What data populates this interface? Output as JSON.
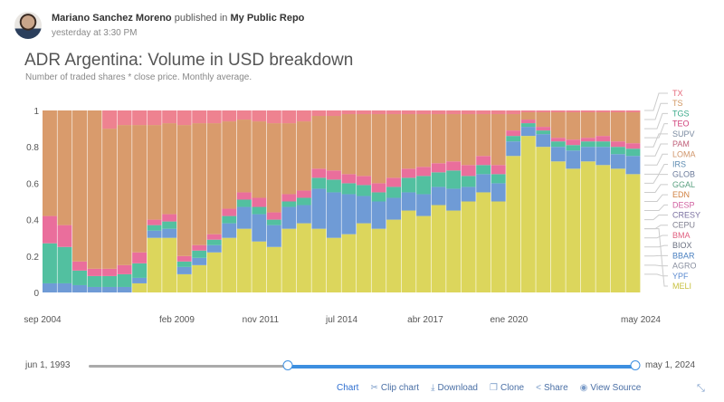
{
  "post": {
    "author": "Mariano Sanchez Moreno",
    "published_text": "published in",
    "repo": "My Public Repo",
    "time": "yesterday at 3:30 PM"
  },
  "chart_data": {
    "type": "bar",
    "stacked": "normalized",
    "title": "ADR Argentina: Volume in USD breakdown",
    "subtitle": "Number of traded shares * close price. Monthly average.",
    "xlabel": "",
    "ylabel": "",
    "ylim": [
      0,
      1
    ],
    "yticks": [
      "0",
      "0.2",
      "0.4",
      "0.6",
      "0.8",
      "1"
    ],
    "xlim": [
      "2004-09",
      "2024-05"
    ],
    "xticks": [
      {
        "label": "sep 2004",
        "date": "2004-09"
      },
      {
        "label": "feb 2009",
        "date": "2009-02"
      },
      {
        "label": "nov 2011",
        "date": "2011-11"
      },
      {
        "label": "jul 2014",
        "date": "2014-07"
      },
      {
        "label": "abr 2017",
        "date": "2017-04"
      },
      {
        "label": "ene 2020",
        "date": "2020-01"
      },
      {
        "label": "may 2024",
        "date": "2024-05"
      }
    ],
    "grid": false,
    "legend_position": "right",
    "legend": [
      {
        "name": "TX",
        "color": "#e5687a"
      },
      {
        "name": "TS",
        "color": "#d09560"
      },
      {
        "name": "TGS",
        "color": "#3aaa8a"
      },
      {
        "name": "TEO",
        "color": "#d0407a"
      },
      {
        "name": "SUPV",
        "color": "#7a8aa0"
      },
      {
        "name": "PAM",
        "color": "#c0607a"
      },
      {
        "name": "LOMA",
        "color": "#d0956a"
      },
      {
        "name": "IRS",
        "color": "#5a8ab0"
      },
      {
        "name": "GLOB",
        "color": "#6a7a9a"
      },
      {
        "name": "GGAL",
        "color": "#5aa080"
      },
      {
        "name": "EDN",
        "color": "#d08040"
      },
      {
        "name": "DESP",
        "color": "#d060a0"
      },
      {
        "name": "CRESY",
        "color": "#7a70a0"
      },
      {
        "name": "CEPU",
        "color": "#808090"
      },
      {
        "name": "BMA",
        "color": "#e06080"
      },
      {
        "name": "BIOX",
        "color": "#6a7080"
      },
      {
        "name": "BBAR",
        "color": "#4a80c0"
      },
      {
        "name": "AGRO",
        "color": "#8a90a0"
      },
      {
        "name": "YPF",
        "color": "#5a8ad0"
      },
      {
        "name": "MELI",
        "color": "#c8c040"
      }
    ],
    "x": [
      "2004-09",
      "2005-03",
      "2005-09",
      "2006-03",
      "2006-09",
      "2007-03",
      "2007-09",
      "2008-03",
      "2008-09",
      "2009-03",
      "2009-09",
      "2010-03",
      "2010-09",
      "2011-03",
      "2011-09",
      "2012-03",
      "2012-09",
      "2013-03",
      "2013-09",
      "2014-03",
      "2014-09",
      "2015-03",
      "2015-09",
      "2016-03",
      "2016-09",
      "2017-03",
      "2017-09",
      "2018-03",
      "2018-09",
      "2019-03",
      "2019-09",
      "2020-03",
      "2020-09",
      "2021-03",
      "2021-09",
      "2022-03",
      "2022-09",
      "2023-03",
      "2023-09",
      "2024-03"
    ],
    "series": [
      {
        "name": "MELI",
        "color": "#dcd65c",
        "values": [
          0,
          0,
          0,
          0,
          0,
          0,
          0.05,
          0.3,
          0.3,
          0.1,
          0.15,
          0.22,
          0.3,
          0.35,
          0.28,
          0.25,
          0.35,
          0.38,
          0.35,
          0.3,
          0.32,
          0.38,
          0.35,
          0.4,
          0.45,
          0.42,
          0.48,
          0.45,
          0.5,
          0.55,
          0.5,
          0.75,
          0.86,
          0.8,
          0.72,
          0.68,
          0.72,
          0.7,
          0.68,
          0.65
        ]
      },
      {
        "name": "YPF",
        "color": "#6f9bd6",
        "values": [
          0.05,
          0.05,
          0.04,
          0.03,
          0.03,
          0.03,
          0.03,
          0.04,
          0.05,
          0.04,
          0.04,
          0.04,
          0.08,
          0.12,
          0.15,
          0.12,
          0.12,
          0.1,
          0.22,
          0.25,
          0.22,
          0.15,
          0.15,
          0.12,
          0.1,
          0.12,
          0.1,
          0.12,
          0.08,
          0.1,
          0.1,
          0.08,
          0.05,
          0.07,
          0.08,
          0.1,
          0.08,
          0.1,
          0.08,
          0.1
        ]
      },
      {
        "name": "GGAL",
        "color": "#52c0a0",
        "values": [
          0.22,
          0.2,
          0.08,
          0.06,
          0.06,
          0.07,
          0.08,
          0.03,
          0.04,
          0.03,
          0.04,
          0.03,
          0.04,
          0.04,
          0.04,
          0.03,
          0.03,
          0.04,
          0.06,
          0.07,
          0.06,
          0.06,
          0.05,
          0.06,
          0.08,
          0.1,
          0.08,
          0.1,
          0.06,
          0.05,
          0.05,
          0.03,
          0.02,
          0.02,
          0.03,
          0.03,
          0.03,
          0.03,
          0.04,
          0.04
        ]
      },
      {
        "name": "BMA",
        "color": "#ea6e9c",
        "values": [
          0.15,
          0.12,
          0.05,
          0.04,
          0.04,
          0.05,
          0.06,
          0.03,
          0.04,
          0.03,
          0.03,
          0.03,
          0.04,
          0.04,
          0.05,
          0.04,
          0.04,
          0.04,
          0.05,
          0.05,
          0.05,
          0.05,
          0.05,
          0.05,
          0.05,
          0.05,
          0.05,
          0.05,
          0.06,
          0.05,
          0.05,
          0.03,
          0.02,
          0.02,
          0.02,
          0.03,
          0.02,
          0.03,
          0.03,
          0.03
        ]
      },
      {
        "name": "TS",
        "color": "#d99b6c",
        "values": [
          0.58,
          0.63,
          0.83,
          0.87,
          0.77,
          0.77,
          0.7,
          0.52,
          0.5,
          0.72,
          0.67,
          0.61,
          0.48,
          0.4,
          0.42,
          0.49,
          0.39,
          0.38,
          0.29,
          0.3,
          0.33,
          0.34,
          0.38,
          0.35,
          0.3,
          0.29,
          0.27,
          0.26,
          0.28,
          0.23,
          0.28,
          0.09,
          0.04,
          0.08,
          0.14,
          0.15,
          0.14,
          0.13,
          0.16,
          0.17
        ]
      },
      {
        "name": "TX",
        "color": "#ee8290",
        "values": [
          0,
          0,
          0,
          0,
          0.1,
          0.08,
          0.08,
          0.08,
          0.07,
          0.08,
          0.07,
          0.07,
          0.06,
          0.05,
          0.06,
          0.07,
          0.07,
          0.06,
          0.03,
          0.03,
          0.02,
          0.02,
          0.02,
          0.02,
          0.02,
          0.02,
          0.02,
          0.02,
          0.02,
          0.02,
          0.02,
          0.02,
          0.01,
          0.01,
          0.01,
          0.01,
          0.01,
          0.01,
          0.01,
          0.01
        ]
      }
    ]
  },
  "range_slider": {
    "min_label": "jun 1, 1993",
    "max_label": "may 1, 2024",
    "min": "1993-06",
    "max": "2024-05",
    "selected": [
      "2004-09",
      "2024-05"
    ],
    "color": "#3d8fe0"
  },
  "toolbar": {
    "chart": "Chart",
    "clip_chart": "Clip chart",
    "download": "Download",
    "clone": "Clone",
    "share": "Share",
    "view_source": "View Source"
  }
}
